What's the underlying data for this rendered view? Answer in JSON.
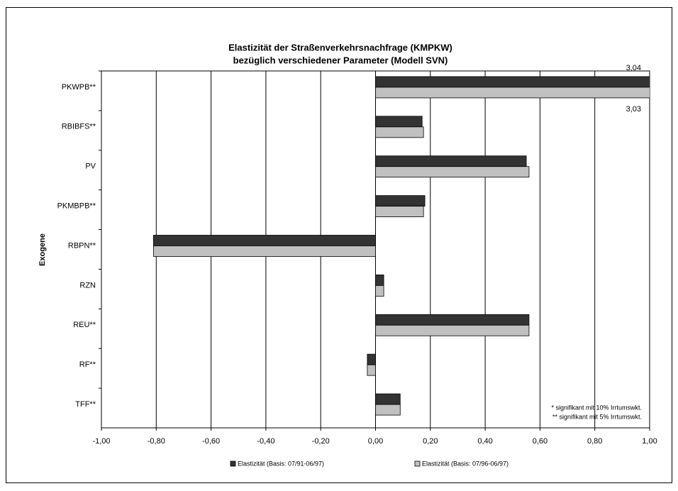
{
  "chart_data": {
    "type": "bar",
    "orientation": "horizontal",
    "title": [
      "Elastizität der Straßenverkehrsnachfrage (KMPKW)",
      "bezüglich verschiedener Parameter (Modell SVN)"
    ],
    "y_label": "Exogene",
    "categories": [
      "PKWPB**",
      "RBIBFS**",
      "PV",
      "PKMBPB**",
      "RBPN**",
      "RZN",
      "REU**",
      "RF**",
      "TFF**"
    ],
    "series": [
      {
        "name": "Elastizität (Basis: 07/91-06/97)",
        "color": "#333333",
        "values": [
          3.04,
          0.17,
          0.55,
          0.18,
          -0.81,
          0.03,
          0.56,
          -0.03,
          0.09
        ],
        "value_labels": [
          "3,04",
          null,
          null,
          null,
          null,
          null,
          null,
          null,
          null
        ]
      },
      {
        "name": "Elastizität (Basis: 07/96-06/97)",
        "color": "#c0c0c0",
        "values": [
          3.03,
          0.175,
          0.56,
          0.175,
          -0.81,
          0.03,
          0.56,
          -0.03,
          0.09
        ],
        "value_labels": [
          "3,03",
          null,
          null,
          null,
          null,
          null,
          null,
          null,
          null
        ]
      }
    ],
    "xlim": [
      -1,
      1
    ],
    "xticks": [
      {
        "value": -1,
        "label": "-1,00"
      },
      {
        "value": -0.8,
        "label": "-0,80"
      },
      {
        "value": -0.6,
        "label": "-0,60"
      },
      {
        "value": -0.4,
        "label": "-0,40"
      },
      {
        "value": -0.2,
        "label": "-0,20"
      },
      {
        "value": 0,
        "label": "0,00"
      },
      {
        "value": 0.2,
        "label": "0,20"
      },
      {
        "value": 0.4,
        "label": "0,40"
      },
      {
        "value": 0.6,
        "label": "0,60"
      },
      {
        "value": 0.8,
        "label": "0,80"
      },
      {
        "value": 1,
        "label": "1,00"
      }
    ],
    "grid": true,
    "notes": [
      "* signifikant mit 10% Irrtumswkt.",
      "** signifikant mit 5% Irrtumswkt."
    ],
    "legend_position": "bottom"
  }
}
